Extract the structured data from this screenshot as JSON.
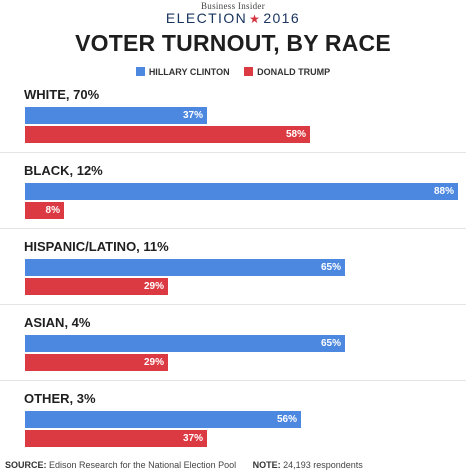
{
  "header": {
    "brand": "Business Insider",
    "election_prefix": "ELECTION",
    "election_star": "★",
    "election_year": "2016",
    "title": "VOTER TURNOUT, BY RACE"
  },
  "colors": {
    "clinton": "#4c87e0",
    "trump": "#dc3a42"
  },
  "chart_data": {
    "type": "bar",
    "orientation": "horizontal",
    "title": "VOTER TURNOUT, BY RACE",
    "legend": {
      "placement": "top-center"
    },
    "series": [
      {
        "name": "HILLARY CLINTON",
        "color": "#4c87e0"
      },
      {
        "name": "DONALD TRUMP",
        "color": "#dc3a42"
      }
    ],
    "groups": [
      {
        "label": "WHITE, 70%",
        "values": [
          37,
          58
        ],
        "value_labels": [
          "37%",
          "58%"
        ]
      },
      {
        "label": "BLACK, 12%",
        "values": [
          88,
          8
        ],
        "value_labels": [
          "88%",
          "8%"
        ]
      },
      {
        "label": "HISPANIC/LATINO, 11%",
        "values": [
          65,
          29
        ],
        "value_labels": [
          "65%",
          "29%"
        ]
      },
      {
        "label": "ASIAN, 4%",
        "values": [
          65,
          29
        ],
        "value_labels": [
          "65%",
          "29%"
        ]
      },
      {
        "label": "OTHER, 3%",
        "values": [
          56,
          37
        ],
        "value_labels": [
          "56%",
          "37%"
        ]
      }
    ],
    "xlim": [
      0,
      88
    ]
  },
  "footer": {
    "source_label": "SOURCE:",
    "source_text": "Edison Research for the National Election Pool",
    "note_label": "NOTE:",
    "note_text": "24,193 respondents"
  }
}
